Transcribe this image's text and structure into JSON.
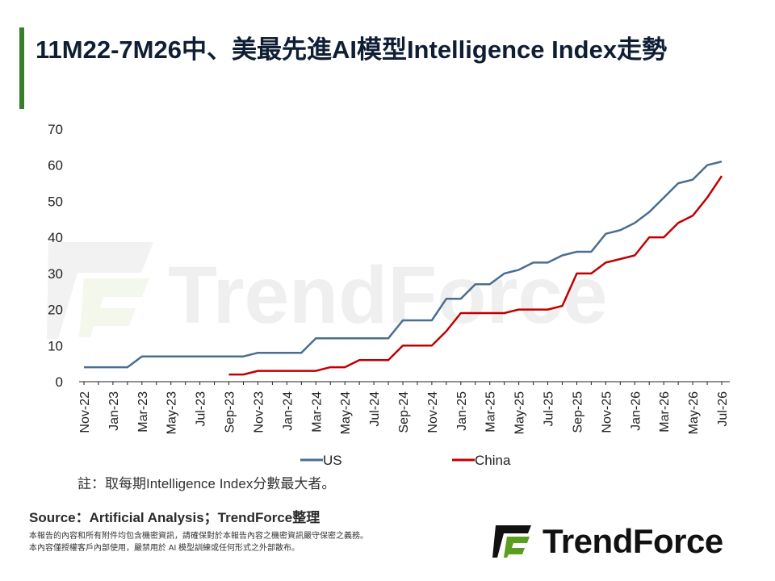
{
  "title": "11M22-7M26中、美最先進AI模型Intelligence Index走勢",
  "note": "註：取每期Intelligence Index分數最大者。",
  "source": "Source：Artificial Analysis；TrendForce整理",
  "disclaimer": [
    "本報告的內容和所有附件均包含機密資訊，請確保對於本報告內容之機密資訊嚴守保密之義務。",
    "本內容僅授權客戶內部使用，嚴禁用於 AI 模型訓練或任何形式之外部散布。"
  ],
  "logo_text": "TrendForce",
  "watermark_text": "TrendForce",
  "colors": {
    "accent": "#3a7d2c",
    "logo_green": "#5a9e1f",
    "us": "#4a6d93",
    "china": "#c00000"
  },
  "chart_data": {
    "type": "line",
    "title": "",
    "xlabel": "",
    "ylabel": "",
    "ylim": [
      0,
      70
    ],
    "yticks": [
      0,
      10,
      20,
      30,
      40,
      50,
      60,
      70
    ],
    "grid": false,
    "legend": "bottom",
    "x": [
      "Nov-22",
      "Dec-22",
      "Jan-23",
      "Feb-23",
      "Mar-23",
      "Apr-23",
      "May-23",
      "Jun-23",
      "Jul-23",
      "Aug-23",
      "Sep-23",
      "Oct-23",
      "Nov-23",
      "Dec-23",
      "Jan-24",
      "Feb-24",
      "Mar-24",
      "Apr-24",
      "May-24",
      "Jun-24",
      "Jul-24",
      "Aug-24",
      "Sep-24",
      "Oct-24",
      "Nov-24",
      "Dec-24",
      "Jan-25",
      "Feb-25",
      "Mar-25",
      "Apr-25",
      "May-25",
      "Jun-25",
      "Jul-25",
      "Aug-25",
      "Sep-25",
      "Oct-25",
      "Nov-25",
      "Dec-25",
      "Jan-26",
      "Feb-26",
      "Mar-26",
      "Apr-26",
      "May-26",
      "Jun-26",
      "Jul-26"
    ],
    "xticklabels": [
      "Nov-22",
      "Jan-23",
      "Mar-23",
      "May-23",
      "Jul-23",
      "Sep-23",
      "Nov-23",
      "Jan-24",
      "Mar-24",
      "May-24",
      "Jul-24",
      "Sep-24",
      "Nov-24",
      "Jan-25",
      "Mar-25",
      "May-25",
      "Jul-25",
      "Sep-25",
      "Nov-25",
      "Jan-26",
      "Mar-26",
      "May-26",
      "Jul-26"
    ],
    "series": [
      {
        "name": "US",
        "color": "#4a6d93",
        "values": [
          4,
          4,
          4,
          4,
          7,
          7,
          7,
          7,
          7,
          7,
          7,
          7,
          8,
          8,
          8,
          8,
          12,
          12,
          12,
          12,
          12,
          12,
          17,
          17,
          17,
          23,
          23,
          27,
          27,
          30,
          31,
          33,
          33,
          35,
          36,
          36,
          41,
          42,
          44,
          47,
          51,
          55,
          56,
          60,
          61
        ]
      },
      {
        "name": "China",
        "color": "#c00000",
        "values": [
          null,
          null,
          null,
          null,
          null,
          null,
          null,
          null,
          null,
          null,
          2,
          2,
          3,
          3,
          3,
          3,
          3,
          4,
          4,
          6,
          6,
          6,
          10,
          10,
          10,
          14,
          19,
          19,
          19,
          19,
          20,
          20,
          20,
          21,
          30,
          30,
          33,
          34,
          35,
          40,
          40,
          44,
          46,
          51,
          57
        ]
      }
    ]
  }
}
